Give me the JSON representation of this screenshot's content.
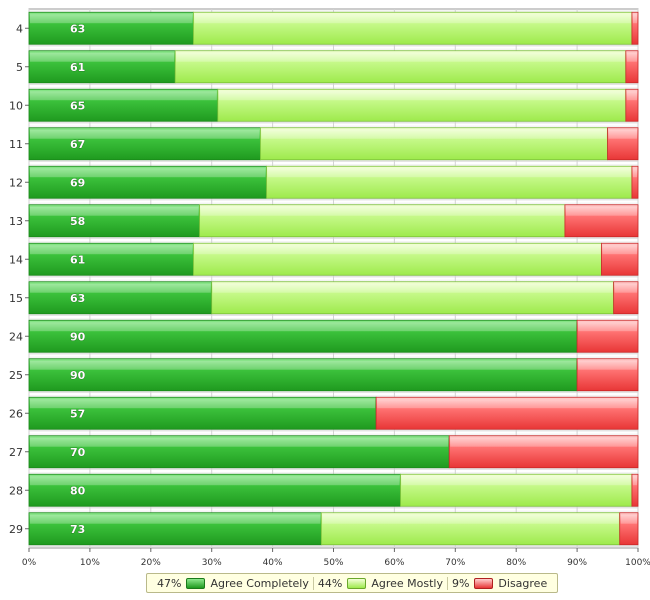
{
  "chart_data": {
    "type": "bar",
    "orientation": "horizontal",
    "stacked": true,
    "categories": [
      "4",
      "5",
      "10",
      "11",
      "12",
      "13",
      "14",
      "15",
      "24",
      "25",
      "26",
      "27",
      "28",
      "29"
    ],
    "series": [
      {
        "name": "Agree Completely",
        "color": "#33b533",
        "values": [
          27,
          24,
          31,
          38,
          39,
          28,
          27,
          30,
          90,
          90,
          57,
          69,
          61,
          48
        ]
      },
      {
        "name": "Agree Mostly",
        "color": "#b9f56b",
        "values": [
          72,
          74,
          67,
          57,
          60,
          60,
          67,
          66,
          0,
          0,
          0,
          0,
          38,
          49
        ]
      },
      {
        "name": "Disagree",
        "color": "#f45555",
        "values": [
          1,
          2,
          2,
          5,
          1,
          12,
          6,
          4,
          10,
          10,
          43,
          31,
          1,
          3
        ]
      }
    ],
    "data_labels": [
      "63",
      "61",
      "65",
      "67",
      "69",
      "58",
      "61",
      "63",
      "90",
      "90",
      "57",
      "70",
      "80",
      "73"
    ],
    "xlim": [
      0,
      100
    ],
    "xticks": [
      "0%",
      "10%",
      "20%",
      "30%",
      "40%",
      "50%",
      "60%",
      "70%",
      "80%",
      "90%",
      "100%"
    ],
    "grid": true,
    "legend_position": "bottom",
    "legend": [
      {
        "pct": "47%",
        "label": "Agree Completely"
      },
      {
        "pct": "44%",
        "label": "Agree Mostly"
      },
      {
        "pct": "9%",
        "label": "Disagree"
      }
    ]
  }
}
